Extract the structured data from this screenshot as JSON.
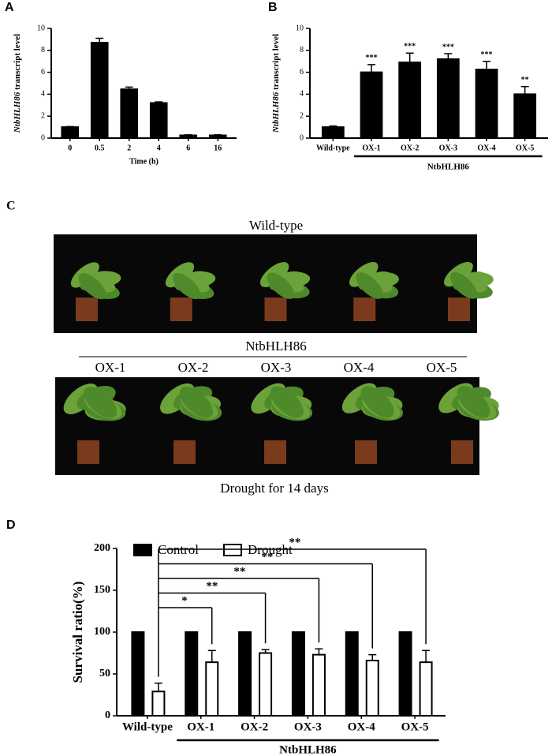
{
  "chart_data": [
    {
      "type": "bar",
      "panel": "A",
      "y_label_italic": "NtbHLH86",
      "y_label": " transcript level",
      "x_label": "Time (h)",
      "categories": [
        "0",
        "0.5",
        "2",
        "4",
        "6",
        "16"
      ],
      "values": [
        1.0,
        8.7,
        4.45,
        3.2,
        0.25,
        0.25
      ],
      "errors": [
        0.05,
        0.4,
        0.2,
        0.1,
        0.05,
        0.05
      ],
      "color": "#000000",
      "ylim": [
        0,
        10
      ],
      "yticks": [
        0,
        2,
        4,
        6,
        8,
        10
      ]
    },
    {
      "type": "bar",
      "panel": "B",
      "y_label_italic": "NtbHLH86",
      "y_label": " transcript level",
      "categories": [
        "Wild-type",
        "OX-1",
        "OX-2",
        "OX-3",
        "OX-4",
        "OX-5"
      ],
      "values": [
        1.0,
        6.0,
        6.9,
        7.2,
        6.25,
        4.0
      ],
      "errors": [
        0.1,
        0.7,
        0.85,
        0.5,
        0.75,
        0.7
      ],
      "annotations": [
        null,
        "***",
        "***",
        "***",
        "***",
        "**"
      ],
      "group_label": "NtbHLH86",
      "color": "#000000",
      "ylim": [
        0,
        10
      ],
      "yticks": [
        0,
        2,
        4,
        6,
        8,
        10
      ]
    },
    {
      "type": "grouped_bar",
      "panel": "D",
      "y_label": "Survival ratio(%)",
      "categories": [
        "Wild-type",
        "OX-1",
        "OX-2",
        "OX-3",
        "OX-4",
        "OX-5"
      ],
      "group_label": "NtbHLH86",
      "series": [
        {
          "name": "Control",
          "color": "#000000",
          "values": [
            100,
            100,
            100,
            100,
            100,
            100
          ]
        },
        {
          "name": "Drought",
          "color": "#ffffff",
          "values": [
            29,
            64,
            75,
            73,
            66,
            64
          ],
          "errors": [
            10,
            14,
            4,
            7,
            7,
            14
          ]
        }
      ],
      "significance_labels": [
        "*",
        "**",
        "**",
        "**",
        "**"
      ],
      "legend": "top-left",
      "ylim": [
        0,
        200
      ],
      "yticks": [
        0,
        50,
        100,
        150,
        200
      ]
    }
  ],
  "photo_panel": {
    "panel": "C",
    "top_label": "Wild-type",
    "group_label": "NtbHLH86",
    "line_labels": [
      "OX-1",
      "OX-2",
      "OX-3",
      "OX-4",
      "OX-5"
    ],
    "caption": "Drought for 14 days"
  }
}
